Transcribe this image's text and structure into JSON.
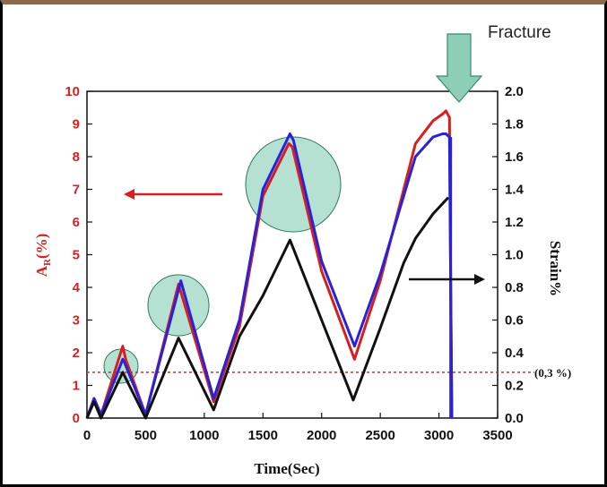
{
  "chart_data": {
    "type": "line",
    "xlabel": "Time(Sec)",
    "ylabel_left": "A_R(%)",
    "ylabel_left_main": "A",
    "ylabel_left_sub": "R",
    "ylabel_left_unit": "(%)",
    "ylabel_right": "Strain%",
    "xlim": [
      0,
      3500
    ],
    "ylim_left": [
      0,
      10
    ],
    "ylim_right": [
      0.0,
      2.0
    ],
    "x_ticks": [
      "0",
      "500",
      "1000",
      "1500",
      "2000",
      "2500",
      "3000",
      "3500"
    ],
    "y_left_ticks": [
      "0",
      "1",
      "2",
      "3",
      "4",
      "5",
      "6",
      "7",
      "8",
      "9",
      "10"
    ],
    "y_right_ticks": [
      "0.0",
      "0.2",
      "0.4",
      "0.6",
      "0.8",
      "1.0",
      "1.2",
      "1.4",
      "1.6",
      "1.8",
      "2.0"
    ],
    "threshold": {
      "label": "(0,3 %)",
      "strain": 0.28,
      "color": "#d03030"
    },
    "annotation_fracture": "Fracture",
    "series": [
      {
        "axis": "left",
        "color": "#d42020",
        "x": [
          0,
          60,
          120,
          305,
          330,
          500,
          780,
          1080,
          1300,
          1500,
          1720,
          1750,
          2000,
          2280,
          2500,
          2800,
          2950,
          3030,
          3060,
          3090,
          3100,
          3110
        ],
        "y": [
          0,
          0.6,
          0.1,
          2.2,
          1.8,
          0.1,
          4.1,
          0.5,
          2.8,
          6.8,
          8.4,
          8.3,
          4.5,
          1.8,
          4.2,
          8.4,
          9.1,
          9.3,
          9.4,
          9.2,
          4,
          0
        ]
      },
      {
        "axis": "left",
        "color": "#2a22d8",
        "x": [
          0,
          60,
          120,
          305,
          320,
          500,
          800,
          1080,
          1300,
          1500,
          1730,
          1760,
          2000,
          2280,
          2500,
          2800,
          2950,
          3030,
          3060,
          3090,
          3100,
          3110
        ],
        "y": [
          0,
          0.6,
          0.1,
          1.8,
          1.7,
          0.1,
          4.2,
          0.6,
          3.0,
          7.0,
          8.7,
          8.5,
          4.8,
          2.2,
          4.4,
          8.0,
          8.6,
          8.7,
          8.7,
          8.6,
          4,
          0
        ]
      },
      {
        "axis": "right",
        "color": "#111111",
        "x": [
          0,
          60,
          120,
          305,
          500,
          780,
          1080,
          1300,
          1500,
          1730,
          2000,
          2270,
          2500,
          2700,
          2800,
          2950,
          3080
        ],
        "y": [
          0,
          0.1,
          0.0,
          0.28,
          0.0,
          0.49,
          0.05,
          0.5,
          0.75,
          1.09,
          0.6,
          0.11,
          0.55,
          0.95,
          1.1,
          1.25,
          1.35
        ]
      }
    ]
  }
}
